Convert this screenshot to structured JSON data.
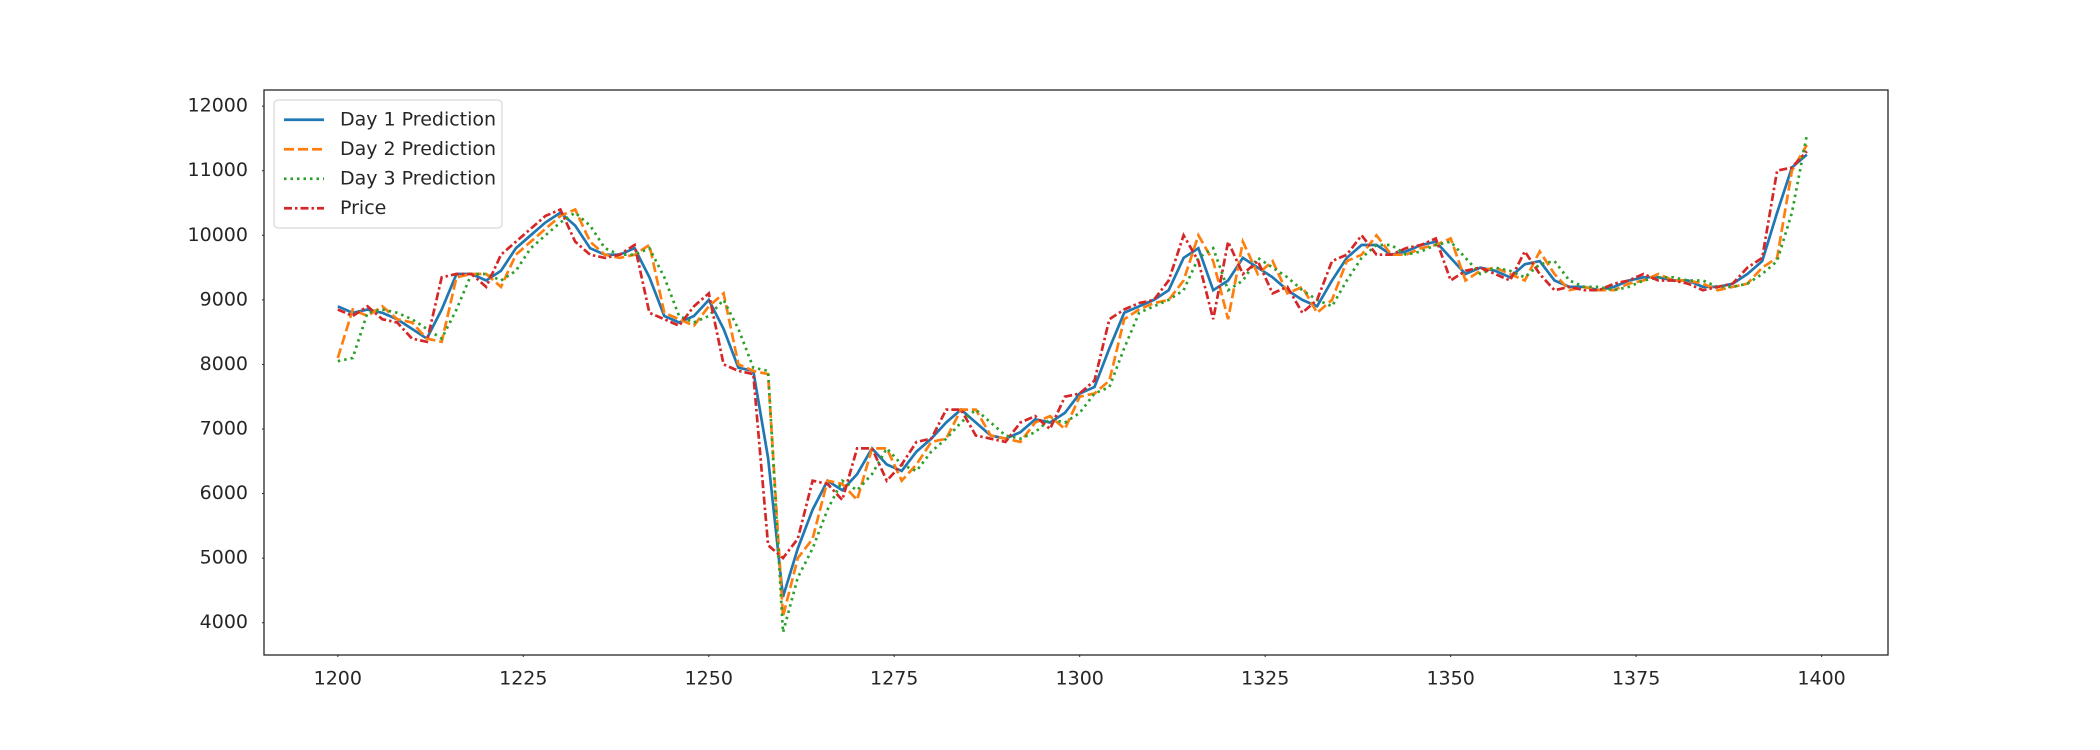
{
  "chart_data": {
    "type": "line",
    "x": [
      1200,
      1202,
      1204,
      1206,
      1208,
      1210,
      1212,
      1214,
      1216,
      1218,
      1220,
      1222,
      1224,
      1226,
      1228,
      1230,
      1232,
      1234,
      1236,
      1238,
      1240,
      1242,
      1244,
      1246,
      1248,
      1250,
      1252,
      1254,
      1256,
      1258,
      1260,
      1262,
      1264,
      1266,
      1268,
      1270,
      1272,
      1274,
      1276,
      1278,
      1280,
      1282,
      1284,
      1286,
      1288,
      1290,
      1292,
      1294,
      1296,
      1298,
      1300,
      1302,
      1304,
      1306,
      1308,
      1310,
      1312,
      1314,
      1316,
      1318,
      1320,
      1322,
      1324,
      1326,
      1328,
      1330,
      1332,
      1334,
      1336,
      1338,
      1340,
      1342,
      1344,
      1346,
      1348,
      1350,
      1352,
      1354,
      1356,
      1358,
      1360,
      1362,
      1364,
      1366,
      1368,
      1370,
      1372,
      1374,
      1376,
      1378,
      1380,
      1382,
      1384,
      1386,
      1388,
      1390,
      1392,
      1394,
      1396,
      1398
    ],
    "series": [
      {
        "name": "Day 1 Prediction",
        "color": "#1f77b4",
        "dash": "solid",
        "values": [
          8900,
          8800,
          8850,
          8800,
          8700,
          8550,
          8400,
          8850,
          9400,
          9400,
          9300,
          9450,
          9800,
          10000,
          10200,
          10350,
          10150,
          9800,
          9700,
          9700,
          9800,
          9350,
          8750,
          8650,
          8750,
          9000,
          8550,
          7950,
          7900,
          6550,
          4400,
          5150,
          5750,
          6200,
          6050,
          6300,
          6700,
          6450,
          6350,
          6650,
          6850,
          7100,
          7300,
          7100,
          6900,
          6850,
          6950,
          7150,
          7100,
          7250,
          7550,
          7650,
          8250,
          8800,
          8900,
          9000,
          9150,
          9650,
          9800,
          9150,
          9300,
          9650,
          9500,
          9350,
          9150,
          9000,
          8900,
          9300,
          9650,
          9850,
          9850,
          9700,
          9750,
          9850,
          9900,
          9650,
          9400,
          9500,
          9450,
          9350,
          9550,
          9600,
          9300,
          9200,
          9200,
          9150,
          9200,
          9300,
          9350,
          9350,
          9300,
          9300,
          9200,
          9200,
          9250,
          9400,
          9600,
          10350,
          11050,
          11250
        ]
      },
      {
        "name": "Day 2 Prediction",
        "color": "#ff7f0e",
        "dash": "dashed",
        "values": [
          8100,
          8850,
          8750,
          8900,
          8700,
          8650,
          8400,
          8350,
          9350,
          9400,
          9400,
          9200,
          9700,
          9900,
          10100,
          10300,
          10400,
          9900,
          9700,
          9650,
          9700,
          9850,
          8800,
          8700,
          8600,
          8900,
          9100,
          8000,
          7900,
          7850,
          4100,
          5000,
          5300,
          6200,
          6150,
          5900,
          6700,
          6700,
          6200,
          6450,
          6800,
          6850,
          7300,
          7300,
          6900,
          6850,
          6800,
          7100,
          7200,
          7000,
          7500,
          7550,
          7750,
          8700,
          8850,
          8950,
          9000,
          9300,
          10000,
          9600,
          8700,
          9900,
          9400,
          9600,
          9100,
          9200,
          8800,
          9000,
          9600,
          9700,
          10000,
          9700,
          9700,
          9800,
          9850,
          9950,
          9300,
          9450,
          9500,
          9400,
          9300,
          9750,
          9400,
          9150,
          9200,
          9150,
          9150,
          9250,
          9300,
          9400,
          9300,
          9300,
          9250,
          9150,
          9200,
          9250,
          9500,
          9650,
          11000,
          11400
        ]
      },
      {
        "name": "Day 3 Prediction",
        "color": "#2ca02c",
        "dash": "dotted",
        "values": [
          8050,
          8100,
          8800,
          8850,
          8800,
          8700,
          8550,
          8400,
          8850,
          9400,
          9400,
          9300,
          9450,
          9800,
          10000,
          10200,
          10350,
          10150,
          9800,
          9700,
          9700,
          9800,
          9350,
          8750,
          8650,
          8750,
          9000,
          8550,
          7950,
          7900,
          3850,
          4700,
          5150,
          5750,
          6200,
          6050,
          6300,
          6700,
          6450,
          6350,
          6650,
          6850,
          7100,
          7300,
          7100,
          6900,
          6850,
          6950,
          7150,
          7100,
          7250,
          7550,
          7650,
          8250,
          8800,
          8900,
          9000,
          9150,
          9650,
          9800,
          9150,
          9300,
          9650,
          9500,
          9350,
          9150,
          9000,
          8900,
          9300,
          9650,
          9850,
          9850,
          9700,
          9750,
          9850,
          9900,
          9650,
          9400,
          9500,
          9450,
          9350,
          9550,
          9600,
          9300,
          9200,
          9200,
          9150,
          9200,
          9300,
          9350,
          9350,
          9300,
          9300,
          9200,
          9200,
          9250,
          9400,
          9600,
          10350,
          11550
        ]
      },
      {
        "name": "Price",
        "color": "#d62728",
        "dash": "dashdot",
        "values": [
          8850,
          8750,
          8900,
          8700,
          8650,
          8400,
          8350,
          9350,
          9400,
          9400,
          9200,
          9700,
          9900,
          10100,
          10300,
          10400,
          9900,
          9700,
          9650,
          9700,
          9850,
          8800,
          8700,
          8600,
          8900,
          9100,
          8000,
          7900,
          7850,
          5200,
          5000,
          5300,
          6200,
          6150,
          5900,
          6700,
          6700,
          6200,
          6450,
          6800,
          6850,
          7300,
          7300,
          6900,
          6850,
          6800,
          7100,
          7200,
          7000,
          7500,
          7550,
          7750,
          8700,
          8850,
          8950,
          9000,
          9300,
          10000,
          9600,
          8700,
          9900,
          9400,
          9600,
          9100,
          9200,
          8800,
          9000,
          9600,
          9700,
          10000,
          9700,
          9700,
          9800,
          9850,
          9950,
          9300,
          9450,
          9500,
          9400,
          9300,
          9750,
          9400,
          9150,
          9200,
          9150,
          9150,
          9250,
          9300,
          9400,
          9300,
          9300,
          9250,
          9150,
          9200,
          9250,
          9500,
          9650,
          11000,
          11050,
          11300
        ]
      }
    ],
    "xlim": [
      1190.05,
      1408.95
    ],
    "xticks": [
      1200,
      1225,
      1250,
      1275,
      1300,
      1325,
      1350,
      1375,
      1400
    ],
    "ylim": [
      3500,
      12250
    ],
    "yticks": [
      4000,
      5000,
      6000,
      7000,
      8000,
      9000,
      10000,
      11000,
      12000
    ],
    "grid": false,
    "legend": "upper left"
  }
}
